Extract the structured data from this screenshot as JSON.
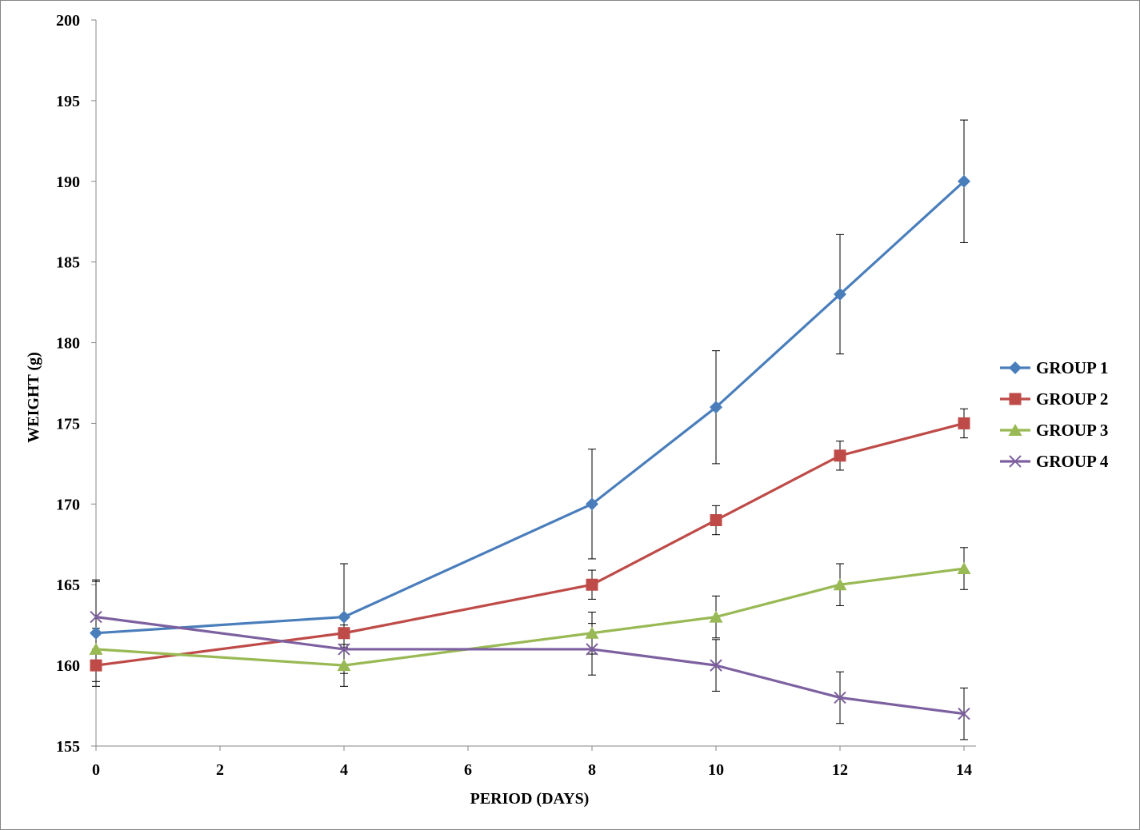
{
  "chart_data": {
    "type": "line",
    "title": "",
    "xlabel": "PERIOD (DAYS)",
    "ylabel": "WEIGHT  (g)",
    "xlim": [
      0,
      14
    ],
    "ylim": [
      155,
      200
    ],
    "xticks": [
      0,
      2,
      4,
      6,
      8,
      10,
      12,
      14
    ],
    "yticks": [
      155,
      160,
      165,
      170,
      175,
      180,
      185,
      190,
      195,
      200
    ],
    "x": [
      0,
      4,
      8,
      10,
      12,
      14
    ],
    "grid": false,
    "legend_position": "right",
    "error_bars": true,
    "series": [
      {
        "name": "GROUP 1",
        "color": "#4A7EBB",
        "marker": "diamond",
        "values": [
          162,
          163,
          170,
          176,
          183,
          190
        ],
        "errors": [
          3.3,
          3.3,
          3.4,
          3.5,
          3.7,
          3.8
        ]
      },
      {
        "name": "GROUP 2",
        "color": "#BE4B48",
        "marker": "square",
        "values": [
          160,
          162,
          165,
          169,
          173,
          175
        ],
        "errors": [
          1.0,
          0.9,
          0.9,
          0.9,
          0.9,
          0.9
        ]
      },
      {
        "name": "GROUP 3",
        "color": "#98B954",
        "marker": "triangle",
        "values": [
          161,
          160,
          162,
          163,
          165,
          166
        ],
        "errors": [
          1.3,
          1.3,
          1.3,
          1.3,
          1.3,
          1.3
        ]
      },
      {
        "name": "GROUP 4",
        "color": "#7D60A0",
        "marker": "x",
        "values": [
          163,
          161,
          161,
          160,
          158,
          157
        ],
        "errors": [
          2.2,
          1.5,
          1.6,
          1.6,
          1.6,
          1.6
        ]
      }
    ]
  }
}
